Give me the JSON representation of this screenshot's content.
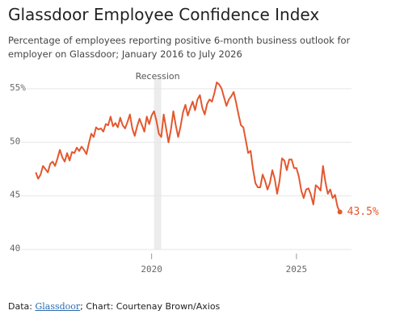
{
  "chart_data": {
    "type": "line",
    "title": "Glassdoor Employee Confidence Index",
    "subtitle": "Percentage of employees reporting positive 6-month business outlook for employer on Glassdoor; January 2016 to July 2026",
    "source_prefix": "Data: ",
    "source_link": "Glassdoor",
    "source_suffix": "; Chart: Courtenay Brown/Axios",
    "recession": {
      "label": "Recession",
      "start": 2020.083,
      "end": 2020.333
    },
    "x": [
      2016,
      2016.083,
      2016.167,
      2016.25,
      2016.333,
      2016.417,
      2016.5,
      2016.583,
      2016.667,
      2016.75,
      2016.833,
      2016.917,
      2017,
      2017.083,
      2017.167,
      2017.25,
      2017.333,
      2017.417,
      2017.5,
      2017.583,
      2017.667,
      2017.75,
      2017.833,
      2017.917,
      2018,
      2018.083,
      2018.167,
      2018.25,
      2018.333,
      2018.417,
      2018.5,
      2018.583,
      2018.667,
      2018.75,
      2018.833,
      2018.917,
      2019,
      2019.083,
      2019.167,
      2019.25,
      2019.333,
      2019.417,
      2019.5,
      2019.583,
      2019.667,
      2019.75,
      2019.833,
      2019.917,
      2020,
      2020.083,
      2020.167,
      2020.25,
      2020.333,
      2020.417,
      2020.5,
      2020.583,
      2020.667,
      2020.75,
      2020.833,
      2020.917,
      2021,
      2021.083,
      2021.167,
      2021.25,
      2021.333,
      2021.417,
      2021.5,
      2021.583,
      2021.667,
      2021.75,
      2021.833,
      2021.917,
      2022,
      2022.083,
      2022.167,
      2022.25,
      2022.333,
      2022.417,
      2022.5,
      2022.583,
      2022.667,
      2022.75,
      2022.833,
      2022.917,
      2023,
      2023.083,
      2023.167,
      2023.25,
      2023.333,
      2023.417,
      2023.5,
      2023.583,
      2023.667,
      2023.75,
      2023.833,
      2023.917,
      2024,
      2024.083,
      2024.167,
      2024.25,
      2024.333,
      2024.417,
      2024.5,
      2024.583,
      2024.667,
      2024.75,
      2024.833,
      2024.917,
      2025,
      2025.083,
      2025.167,
      2025.25,
      2025.333,
      2025.417,
      2025.5,
      2025.583,
      2025.667,
      2025.75,
      2025.833,
      2025.917,
      2026,
      2026.083,
      2026.167,
      2026.25,
      2026.333,
      2026.417,
      2026.5
    ],
    "series": [
      {
        "color": "#e4572e",
        "values": [
          47.2,
          46.6,
          47.0,
          47.8,
          47.5,
          47.2,
          48.0,
          48.2,
          47.8,
          48.5,
          49.3,
          48.6,
          48.2,
          49.0,
          48.3,
          49.1,
          49.0,
          49.5,
          49.2,
          49.6,
          49.3,
          48.9,
          49.9,
          50.8,
          50.5,
          51.4,
          51.2,
          51.3,
          51.0,
          51.7,
          51.6,
          52.4,
          51.5,
          51.8,
          51.4,
          52.3,
          51.6,
          51.3,
          51.9,
          52.6,
          51.3,
          50.6,
          51.5,
          52.2,
          51.6,
          51.0,
          52.4,
          51.7,
          52.5,
          52.9,
          52.0,
          50.8,
          50.5,
          52.6,
          51.3,
          50.0,
          51.2,
          52.9,
          51.6,
          50.5,
          51.5,
          52.8,
          53.5,
          52.5,
          53.2,
          53.8,
          53.0,
          54.0,
          54.4,
          53.2,
          52.6,
          53.6,
          54.0,
          53.8,
          54.6,
          55.6,
          55.4,
          55.0,
          54.2,
          53.4,
          54.0,
          54.3,
          54.7,
          53.7,
          52.6,
          51.6,
          51.4,
          50.2,
          49.0,
          49.2,
          47.5,
          46.2,
          45.8,
          45.8,
          47.0,
          46.4,
          45.6,
          46.2,
          47.4,
          46.6,
          45.2,
          46.4,
          48.5,
          48.3,
          47.4,
          48.4,
          48.4,
          47.6,
          47.6,
          46.8,
          45.5,
          44.8,
          45.6,
          45.7,
          45.1,
          44.2,
          46.0,
          45.8,
          45.5,
          47.8,
          46.3,
          45.2,
          45.6,
          44.8,
          45.1,
          44.0,
          43.5
        ],
        "value_labels": [
          null,
          null,
          null,
          null,
          null,
          null,
          null,
          null,
          null,
          null,
          null,
          null,
          null,
          null,
          null,
          null,
          null,
          null,
          null,
          null,
          null,
          null,
          null,
          null,
          null,
          null,
          null,
          null,
          null,
          null,
          null,
          null,
          null,
          null,
          null,
          null,
          null,
          null,
          null,
          null,
          null,
          null,
          null,
          null,
          null,
          null,
          null,
          null,
          null,
          null,
          null,
          null,
          null,
          null,
          null,
          null,
          null,
          null,
          null,
          null,
          null,
          null,
          null,
          null,
          null,
          null,
          null,
          null,
          null,
          null,
          null,
          null,
          null,
          null,
          null,
          null,
          null,
          null,
          null,
          null,
          null,
          null,
          null,
          null,
          null,
          null,
          null,
          null,
          null,
          null,
          null,
          null,
          null,
          null,
          null,
          null,
          null,
          null,
          null,
          null,
          null,
          null,
          null,
          null,
          null,
          null,
          null,
          null,
          null,
          null,
          null,
          null,
          null,
          null,
          null,
          null,
          null,
          null,
          null,
          null,
          null,
          null,
          null,
          null,
          null,
          null,
          "43.5%"
        ]
      }
    ],
    "xlim": [
      2015.1,
      2026.9
    ],
    "xticks": [
      2020,
      2025
    ],
    "ylim": [
      40,
      56.5
    ],
    "yticks": [
      {
        "value": 55,
        "label": "55%"
      },
      50,
      45,
      40
    ],
    "grid": true
  }
}
